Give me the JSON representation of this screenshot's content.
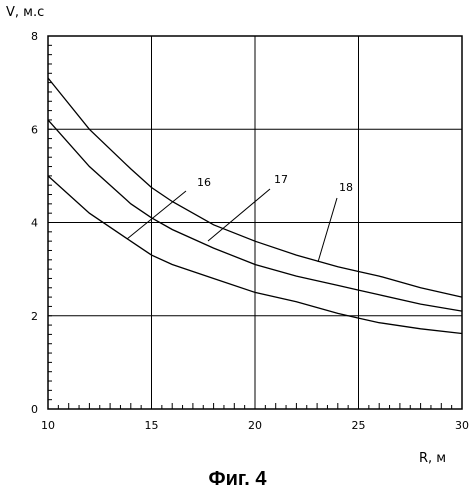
{
  "chart_data": {
    "type": "line",
    "ylabel": "V, м.с",
    "xlabel": "R, м",
    "xlim": [
      10,
      30
    ],
    "ylim": [
      0,
      8
    ],
    "x_ticks": [
      "10",
      "15",
      "20",
      "25",
      "30"
    ],
    "y_ticks": [
      "0",
      "2",
      "4",
      "6",
      "8"
    ],
    "grid": true,
    "series": [
      {
        "name": "16",
        "x": [
          10,
          12,
          14,
          15,
          16,
          18,
          20,
          22,
          24,
          25,
          26,
          28,
          30
        ],
        "values": [
          5.0,
          4.2,
          3.6,
          3.3,
          3.1,
          2.8,
          2.5,
          2.3,
          2.05,
          1.95,
          1.85,
          1.72,
          1.62
        ]
      },
      {
        "name": "17",
        "x": [
          10,
          12,
          14,
          15,
          16,
          18,
          20,
          22,
          24,
          25,
          26,
          28,
          30
        ],
        "values": [
          6.2,
          5.2,
          4.4,
          4.1,
          3.85,
          3.45,
          3.1,
          2.85,
          2.65,
          2.55,
          2.45,
          2.25,
          2.1
        ]
      },
      {
        "name": "18",
        "x": [
          10,
          12,
          14,
          15,
          16,
          18,
          20,
          22,
          24,
          25,
          26,
          28,
          30
        ],
        "values": [
          7.1,
          6.0,
          5.15,
          4.75,
          4.45,
          3.95,
          3.6,
          3.3,
          3.05,
          2.95,
          2.85,
          2.6,
          2.4
        ]
      }
    ],
    "annotations": [
      "16",
      "17",
      "18"
    ]
  },
  "caption": "Фиг. 4"
}
